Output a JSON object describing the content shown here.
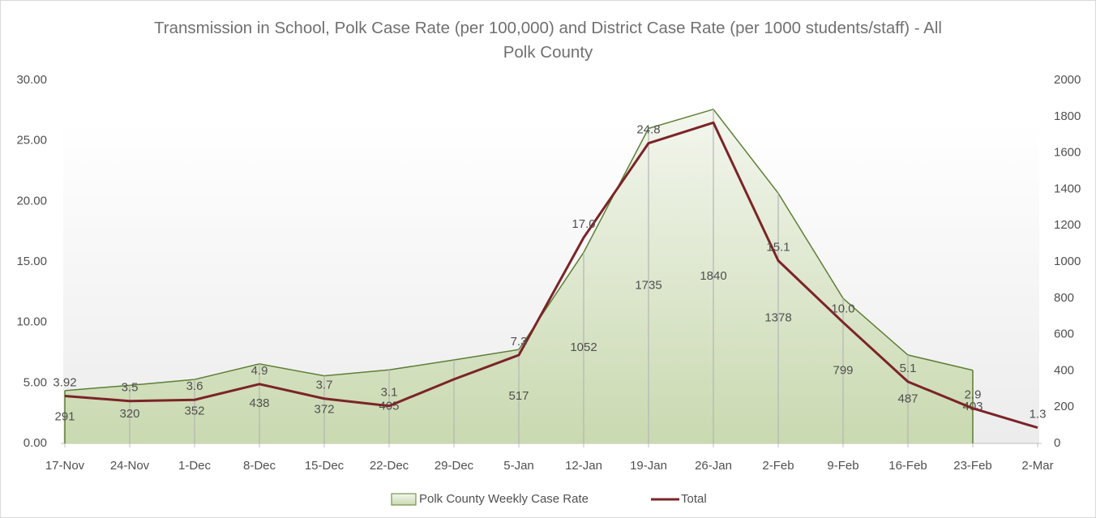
{
  "chart_data": {
    "type": "area-line",
    "title": "Transmission in School, Polk Case Rate (per 100,000) and District Case Rate (per 1000 students/staff) - All Polk County",
    "categories": [
      "17-Nov",
      "24-Nov",
      "1-Dec",
      "8-Dec",
      "15-Dec",
      "22-Dec",
      "29-Dec",
      "5-Jan",
      "12-Jan",
      "19-Jan",
      "26-Jan",
      "2-Feb",
      "9-Feb",
      "16-Feb",
      "23-Feb",
      "2-Mar"
    ],
    "series": [
      {
        "name": "Polk County Weekly Case Rate",
        "type": "area",
        "axis": "y2",
        "color": "#d6e3c3",
        "stroke": "#5f7f35",
        "values": [
          291,
          320,
          352,
          438,
          372,
          405,
          460,
          517,
          1052,
          1735,
          1840,
          1378,
          799,
          487,
          403,
          null
        ],
        "value_labels": [
          "291",
          "320",
          "352",
          "438",
          "372",
          "405",
          null,
          "517",
          "1052",
          "1735",
          "1840",
          "1378",
          "799",
          "487",
          "403",
          null
        ]
      },
      {
        "name": "Total",
        "type": "line",
        "axis": "y",
        "color": "#7b2428",
        "values": [
          3.92,
          3.5,
          3.6,
          4.9,
          3.7,
          3.1,
          5.3,
          7.3,
          17.0,
          24.8,
          26.5,
          15.1,
          10.0,
          5.1,
          2.9,
          1.3
        ],
        "value_labels": [
          "3.92",
          "3.5",
          "3.6",
          "4.9",
          "3.7",
          "3.1",
          null,
          "7.3",
          "17.0",
          "24.8",
          null,
          "15.1",
          "10.0",
          "5.1",
          "2.9",
          "1.3"
        ]
      }
    ],
    "ylim": [
      0,
      30
    ],
    "yticks": [
      {
        "value": 0,
        "label": "0.00"
      },
      {
        "value": 5,
        "label": "5.00"
      },
      {
        "value": 10,
        "label": "10.00"
      },
      {
        "value": 15,
        "label": "15.00"
      },
      {
        "value": 20,
        "label": "20.00"
      },
      {
        "value": 25,
        "label": "25.00"
      },
      {
        "value": 30,
        "label": "30.00"
      }
    ],
    "y2lim": [
      0,
      2000
    ],
    "y2ticks": [
      0,
      200,
      400,
      600,
      800,
      1000,
      1200,
      1400,
      1600,
      1800,
      2000
    ],
    "legend": "bottom"
  }
}
